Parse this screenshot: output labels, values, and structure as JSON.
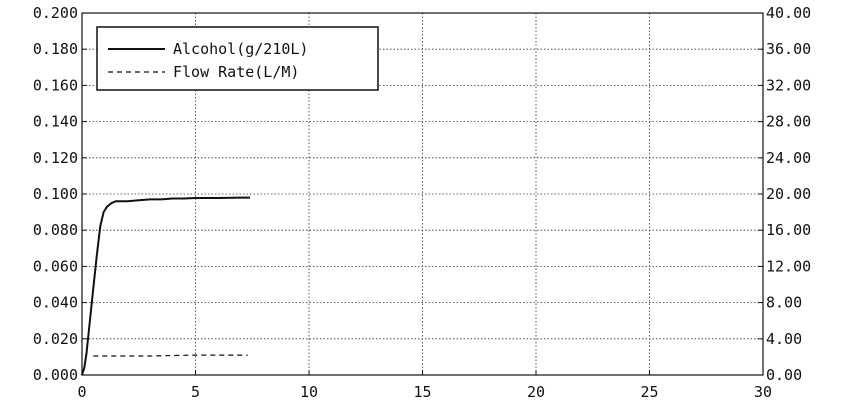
{
  "chart_data": {
    "type": "line",
    "title": "",
    "xlabel": "",
    "ylabel": "",
    "y2label": "",
    "xlim": [
      0,
      30
    ],
    "ylim": [
      0,
      0.2
    ],
    "y2lim": [
      0,
      40
    ],
    "x_ticks": [
      "0",
      "5",
      "10",
      "15",
      "20",
      "25",
      "30"
    ],
    "y_ticks": [
      "0.000",
      "0.020",
      "0.040",
      "0.060",
      "0.080",
      "0.100",
      "0.120",
      "0.140",
      "0.160",
      "0.180",
      "0.200"
    ],
    "y2_ticks": [
      "0.00",
      "4.00",
      "8.00",
      "12.00",
      "16.00",
      "20.00",
      "24.00",
      "28.00",
      "32.00",
      "36.00",
      "40.00"
    ],
    "grid": true,
    "legend_position": "top-left",
    "series": [
      {
        "name": "Alcohol(g/210L)",
        "axis": "left",
        "style": "solid",
        "x": [
          0.0,
          0.1,
          0.2,
          0.35,
          0.5,
          0.65,
          0.8,
          0.95,
          1.1,
          1.3,
          1.5,
          2.0,
          2.5,
          3.0,
          3.5,
          4.0,
          4.5,
          5.0,
          6.0,
          7.0,
          7.4
        ],
        "y": [
          0.0,
          0.004,
          0.012,
          0.03,
          0.048,
          0.066,
          0.082,
          0.09,
          0.093,
          0.095,
          0.096,
          0.096,
          0.0965,
          0.097,
          0.097,
          0.0975,
          0.0975,
          0.0978,
          0.0978,
          0.098,
          0.098
        ]
      },
      {
        "name": "Flow Rate(L/M)",
        "axis": "right",
        "style": "dashed",
        "x": [
          0.5,
          1.0,
          2.0,
          3.0,
          4.0,
          5.0,
          6.0,
          7.0,
          7.3
        ],
        "y": [
          2.1,
          2.1,
          2.1,
          2.1,
          2.15,
          2.2,
          2.2,
          2.2,
          2.2
        ]
      }
    ]
  }
}
